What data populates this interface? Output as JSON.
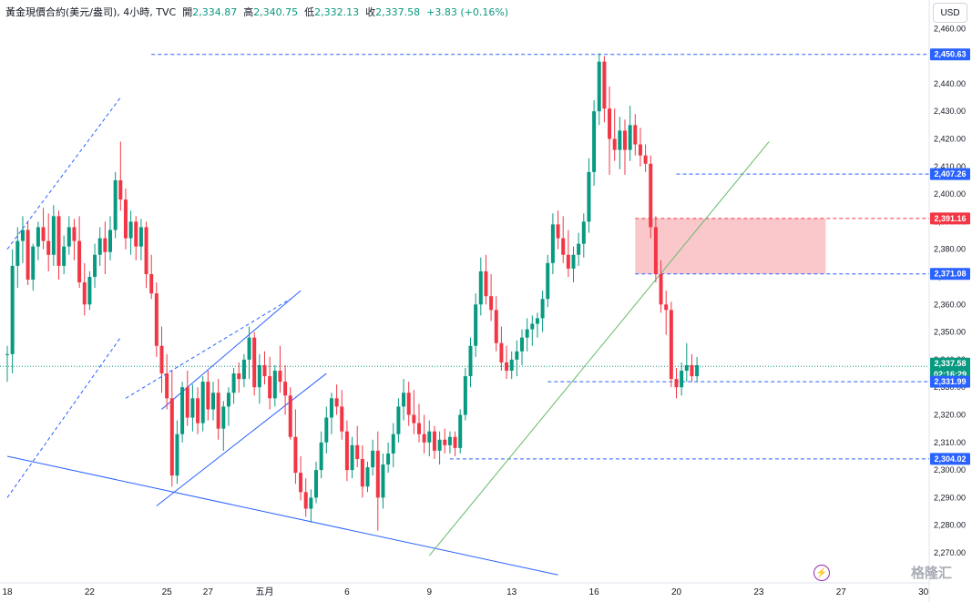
{
  "header": {
    "symbol": "黃金現價合約(美元/盎司), 4小時, TVC",
    "open_label": "開",
    "open": "2,334.87",
    "high_label": "高",
    "high": "2,340.75",
    "low_label": "低",
    "low": "2,332.13",
    "close_label": "收",
    "close": "2,337.58",
    "change": "+3.83 (+0.16%)"
  },
  "currency_button": "USD",
  "watermark": "格隆汇",
  "colors": {
    "up": "#089981",
    "down": "#f23645",
    "level": "#2962ff",
    "trend": "#66bb6a",
    "zone": "#f7a1a8"
  },
  "chart_data": {
    "type": "candlestick",
    "y_axis": {
      "ticks": [
        "2,270.00",
        "2,280.00",
        "2,290.00",
        "2,300.00",
        "2,310.00",
        "2,320.00",
        "2,330.00",
        "2,340.00",
        "2,350.00",
        "2,360.00",
        "2,370.00",
        "2,380.00",
        "2,390.00",
        "2,400.00",
        "2,410.00",
        "2,420.00",
        "2,430.00",
        "2,440.00",
        "2,450.00",
        "2,460.00"
      ],
      "range": [
        2262,
        2464
      ]
    },
    "x_axis": {
      "labels": [
        "18",
        "22",
        "25",
        "27",
        "五月",
        "6",
        "9",
        "13",
        "16",
        "20",
        "23",
        "27",
        "30"
      ],
      "positions": [
        0,
        16,
        31,
        39,
        50,
        66,
        82,
        98,
        114,
        130,
        146,
        162,
        178
      ]
    },
    "candles": {
      "fields": [
        "open",
        "high",
        "low",
        "close"
      ],
      "data": [
        [
          2342,
          2345,
          2332,
          2342
        ],
        [
          2342,
          2380,
          2335,
          2374
        ],
        [
          2374,
          2388,
          2366,
          2383
        ],
        [
          2383,
          2392,
          2375,
          2387
        ],
        [
          2387,
          2390,
          2367,
          2369
        ],
        [
          2369,
          2382,
          2365,
          2381
        ],
        [
          2381,
          2390,
          2376,
          2388
        ],
        [
          2388,
          2395,
          2380,
          2383
        ],
        [
          2383,
          2393,
          2372,
          2378
        ],
        [
          2378,
          2396,
          2374,
          2392
        ],
        [
          2392,
          2394,
          2369,
          2374
        ],
        [
          2374,
          2385,
          2371,
          2381
        ],
        [
          2381,
          2392,
          2378,
          2388
        ],
        [
          2388,
          2391,
          2376,
          2383
        ],
        [
          2383,
          2392,
          2366,
          2368
        ],
        [
          2368,
          2375,
          2356,
          2360
        ],
        [
          2360,
          2372,
          2358,
          2370
        ],
        [
          2370,
          2382,
          2366,
          2378
        ],
        [
          2378,
          2388,
          2374,
          2384
        ],
        [
          2384,
          2390,
          2371,
          2379
        ],
        [
          2379,
          2392,
          2376,
          2387
        ],
        [
          2387,
          2408,
          2384,
          2405
        ],
        [
          2405,
          2419,
          2394,
          2398
        ],
        [
          2398,
          2402,
          2380,
          2384
        ],
        [
          2384,
          2394,
          2378,
          2390
        ],
        [
          2390,
          2392,
          2376,
          2381
        ],
        [
          2381,
          2391,
          2376,
          2388
        ],
        [
          2388,
          2390,
          2366,
          2371
        ],
        [
          2371,
          2378,
          2362,
          2364
        ],
        [
          2364,
          2368,
          2341,
          2345
        ],
        [
          2345,
          2352,
          2328,
          2335
        ],
        [
          2335,
          2342,
          2322,
          2326
        ],
        [
          2326,
          2336,
          2294,
          2298
        ],
        [
          2298,
          2318,
          2295,
          2313
        ],
        [
          2313,
          2332,
          2310,
          2330
        ],
        [
          2330,
          2336,
          2316,
          2319
        ],
        [
          2319,
          2331,
          2314,
          2326
        ],
        [
          2326,
          2330,
          2313,
          2317
        ],
        [
          2317,
          2334,
          2314,
          2332
        ],
        [
          2332,
          2336,
          2318,
          2322
        ],
        [
          2322,
          2332,
          2318,
          2328
        ],
        [
          2328,
          2333,
          2311,
          2315
        ],
        [
          2315,
          2325,
          2307,
          2323
        ],
        [
          2323,
          2330,
          2316,
          2328
        ],
        [
          2328,
          2337,
          2324,
          2335
        ],
        [
          2335,
          2339,
          2328,
          2333
        ],
        [
          2333,
          2342,
          2330,
          2340
        ],
        [
          2340,
          2352,
          2333,
          2348
        ],
        [
          2348,
          2350,
          2327,
          2330
        ],
        [
          2330,
          2342,
          2324,
          2338
        ],
        [
          2338,
          2343,
          2331,
          2334
        ],
        [
          2334,
          2341,
          2322,
          2326
        ],
        [
          2326,
          2338,
          2323,
          2336
        ],
        [
          2336,
          2345,
          2328,
          2332
        ],
        [
          2332,
          2338,
          2320,
          2327
        ],
        [
          2327,
          2330,
          2311,
          2312
        ],
        [
          2312,
          2322,
          2295,
          2299
        ],
        [
          2299,
          2305,
          2289,
          2292
        ],
        [
          2292,
          2297,
          2283,
          2286
        ],
        [
          2286,
          2293,
          2281,
          2290
        ],
        [
          2290,
          2303,
          2288,
          2300
        ],
        [
          2300,
          2314,
          2297,
          2310
        ],
        [
          2310,
          2323,
          2306,
          2319
        ],
        [
          2319,
          2328,
          2313,
          2326
        ],
        [
          2326,
          2331,
          2320,
          2323
        ],
        [
          2323,
          2329,
          2311,
          2314
        ],
        [
          2314,
          2318,
          2296,
          2300
        ],
        [
          2300,
          2312,
          2297,
          2309
        ],
        [
          2309,
          2316,
          2301,
          2304
        ],
        [
          2304,
          2309,
          2290,
          2294
        ],
        [
          2294,
          2303,
          2292,
          2301
        ],
        [
          2301,
          2311,
          2298,
          2307
        ],
        [
          2307,
          2314,
          2278,
          2290
        ],
        [
          2290,
          2306,
          2286,
          2302
        ],
        [
          2302,
          2310,
          2299,
          2306
        ],
        [
          2306,
          2317,
          2301,
          2313
        ],
        [
          2313,
          2326,
          2310,
          2323
        ],
        [
          2323,
          2333,
          2318,
          2328
        ],
        [
          2328,
          2332,
          2316,
          2320
        ],
        [
          2320,
          2329,
          2313,
          2317
        ],
        [
          2317,
          2324,
          2310,
          2313
        ],
        [
          2313,
          2320,
          2306,
          2310
        ],
        [
          2310,
          2318,
          2305,
          2314
        ],
        [
          2314,
          2316,
          2304,
          2307
        ],
        [
          2307,
          2314,
          2302,
          2311
        ],
        [
          2311,
          2315,
          2306,
          2309
        ],
        [
          2309,
          2314,
          2306,
          2312
        ],
        [
          2312,
          2314,
          2305,
          2308
        ],
        [
          2308,
          2322,
          2306,
          2320
        ],
        [
          2320,
          2337,
          2318,
          2334
        ],
        [
          2334,
          2348,
          2330,
          2345
        ],
        [
          2345,
          2364,
          2341,
          2360
        ],
        [
          2360,
          2377,
          2356,
          2372
        ],
        [
          2372,
          2378,
          2360,
          2363
        ],
        [
          2363,
          2371,
          2354,
          2358
        ],
        [
          2358,
          2363,
          2343,
          2346
        ],
        [
          2346,
          2352,
          2336,
          2339
        ],
        [
          2339,
          2345,
          2333,
          2336
        ],
        [
          2336,
          2343,
          2333,
          2340
        ],
        [
          2340,
          2347,
          2334,
          2343
        ],
        [
          2343,
          2351,
          2338,
          2348
        ],
        [
          2348,
          2355,
          2343,
          2351
        ],
        [
          2351,
          2356,
          2345,
          2353
        ],
        [
          2353,
          2357,
          2348,
          2355
        ],
        [
          2355,
          2365,
          2350,
          2362
        ],
        [
          2362,
          2378,
          2359,
          2375
        ],
        [
          2375,
          2393,
          2371,
          2389
        ],
        [
          2389,
          2394,
          2380,
          2384
        ],
        [
          2384,
          2392,
          2375,
          2378
        ],
        [
          2378,
          2387,
          2370,
          2373
        ],
        [
          2373,
          2381,
          2368,
          2378
        ],
        [
          2378,
          2386,
          2374,
          2382
        ],
        [
          2382,
          2393,
          2377,
          2390
        ],
        [
          2390,
          2413,
          2386,
          2408
        ],
        [
          2408,
          2434,
          2403,
          2430
        ],
        [
          2430,
          2451,
          2425,
          2448
        ],
        [
          2448,
          2450,
          2426,
          2431
        ],
        [
          2431,
          2439,
          2407,
          2420
        ],
        [
          2420,
          2431,
          2412,
          2416
        ],
        [
          2416,
          2428,
          2409,
          2423
        ],
        [
          2423,
          2427,
          2407,
          2416
        ],
        [
          2416,
          2432,
          2412,
          2425
        ],
        [
          2425,
          2429,
          2414,
          2418
        ],
        [
          2418,
          2424,
          2410,
          2414
        ],
        [
          2414,
          2418,
          2408,
          2411
        ],
        [
          2411,
          2414,
          2384,
          2388
        ],
        [
          2388,
          2392,
          2368,
          2371
        ],
        [
          2371,
          2376,
          2357,
          2360
        ],
        [
          2360,
          2365,
          2349,
          2358
        ],
        [
          2358,
          2361,
          2330,
          2333
        ],
        [
          2333,
          2337,
          2326,
          2330
        ],
        [
          2330,
          2339,
          2327,
          2336
        ],
        [
          2336,
          2346,
          2332,
          2338
        ],
        [
          2338,
          2342,
          2332,
          2334
        ],
        [
          2334,
          2341,
          2332,
          2338
        ]
      ]
    },
    "horizontal_levels": [
      "2,450.63",
      "2,407.26",
      "2,391.16",
      "2,371.08",
      "2,331.99",
      "2,304.02"
    ],
    "price_labels": [
      {
        "text": "2,450.63",
        "style": "blue"
      },
      {
        "text": "2,407.26",
        "style": "blue"
      },
      {
        "text": "2,391.16",
        "style": "red"
      },
      {
        "text": "2,371.08",
        "style": "blue"
      },
      {
        "text": "2,337.58",
        "style": "green"
      },
      {
        "text": "02:16:29",
        "style": "green"
      },
      {
        "text": "2,331.99",
        "style": "blue"
      },
      {
        "text": "2,304.02",
        "style": "blue"
      }
    ]
  }
}
